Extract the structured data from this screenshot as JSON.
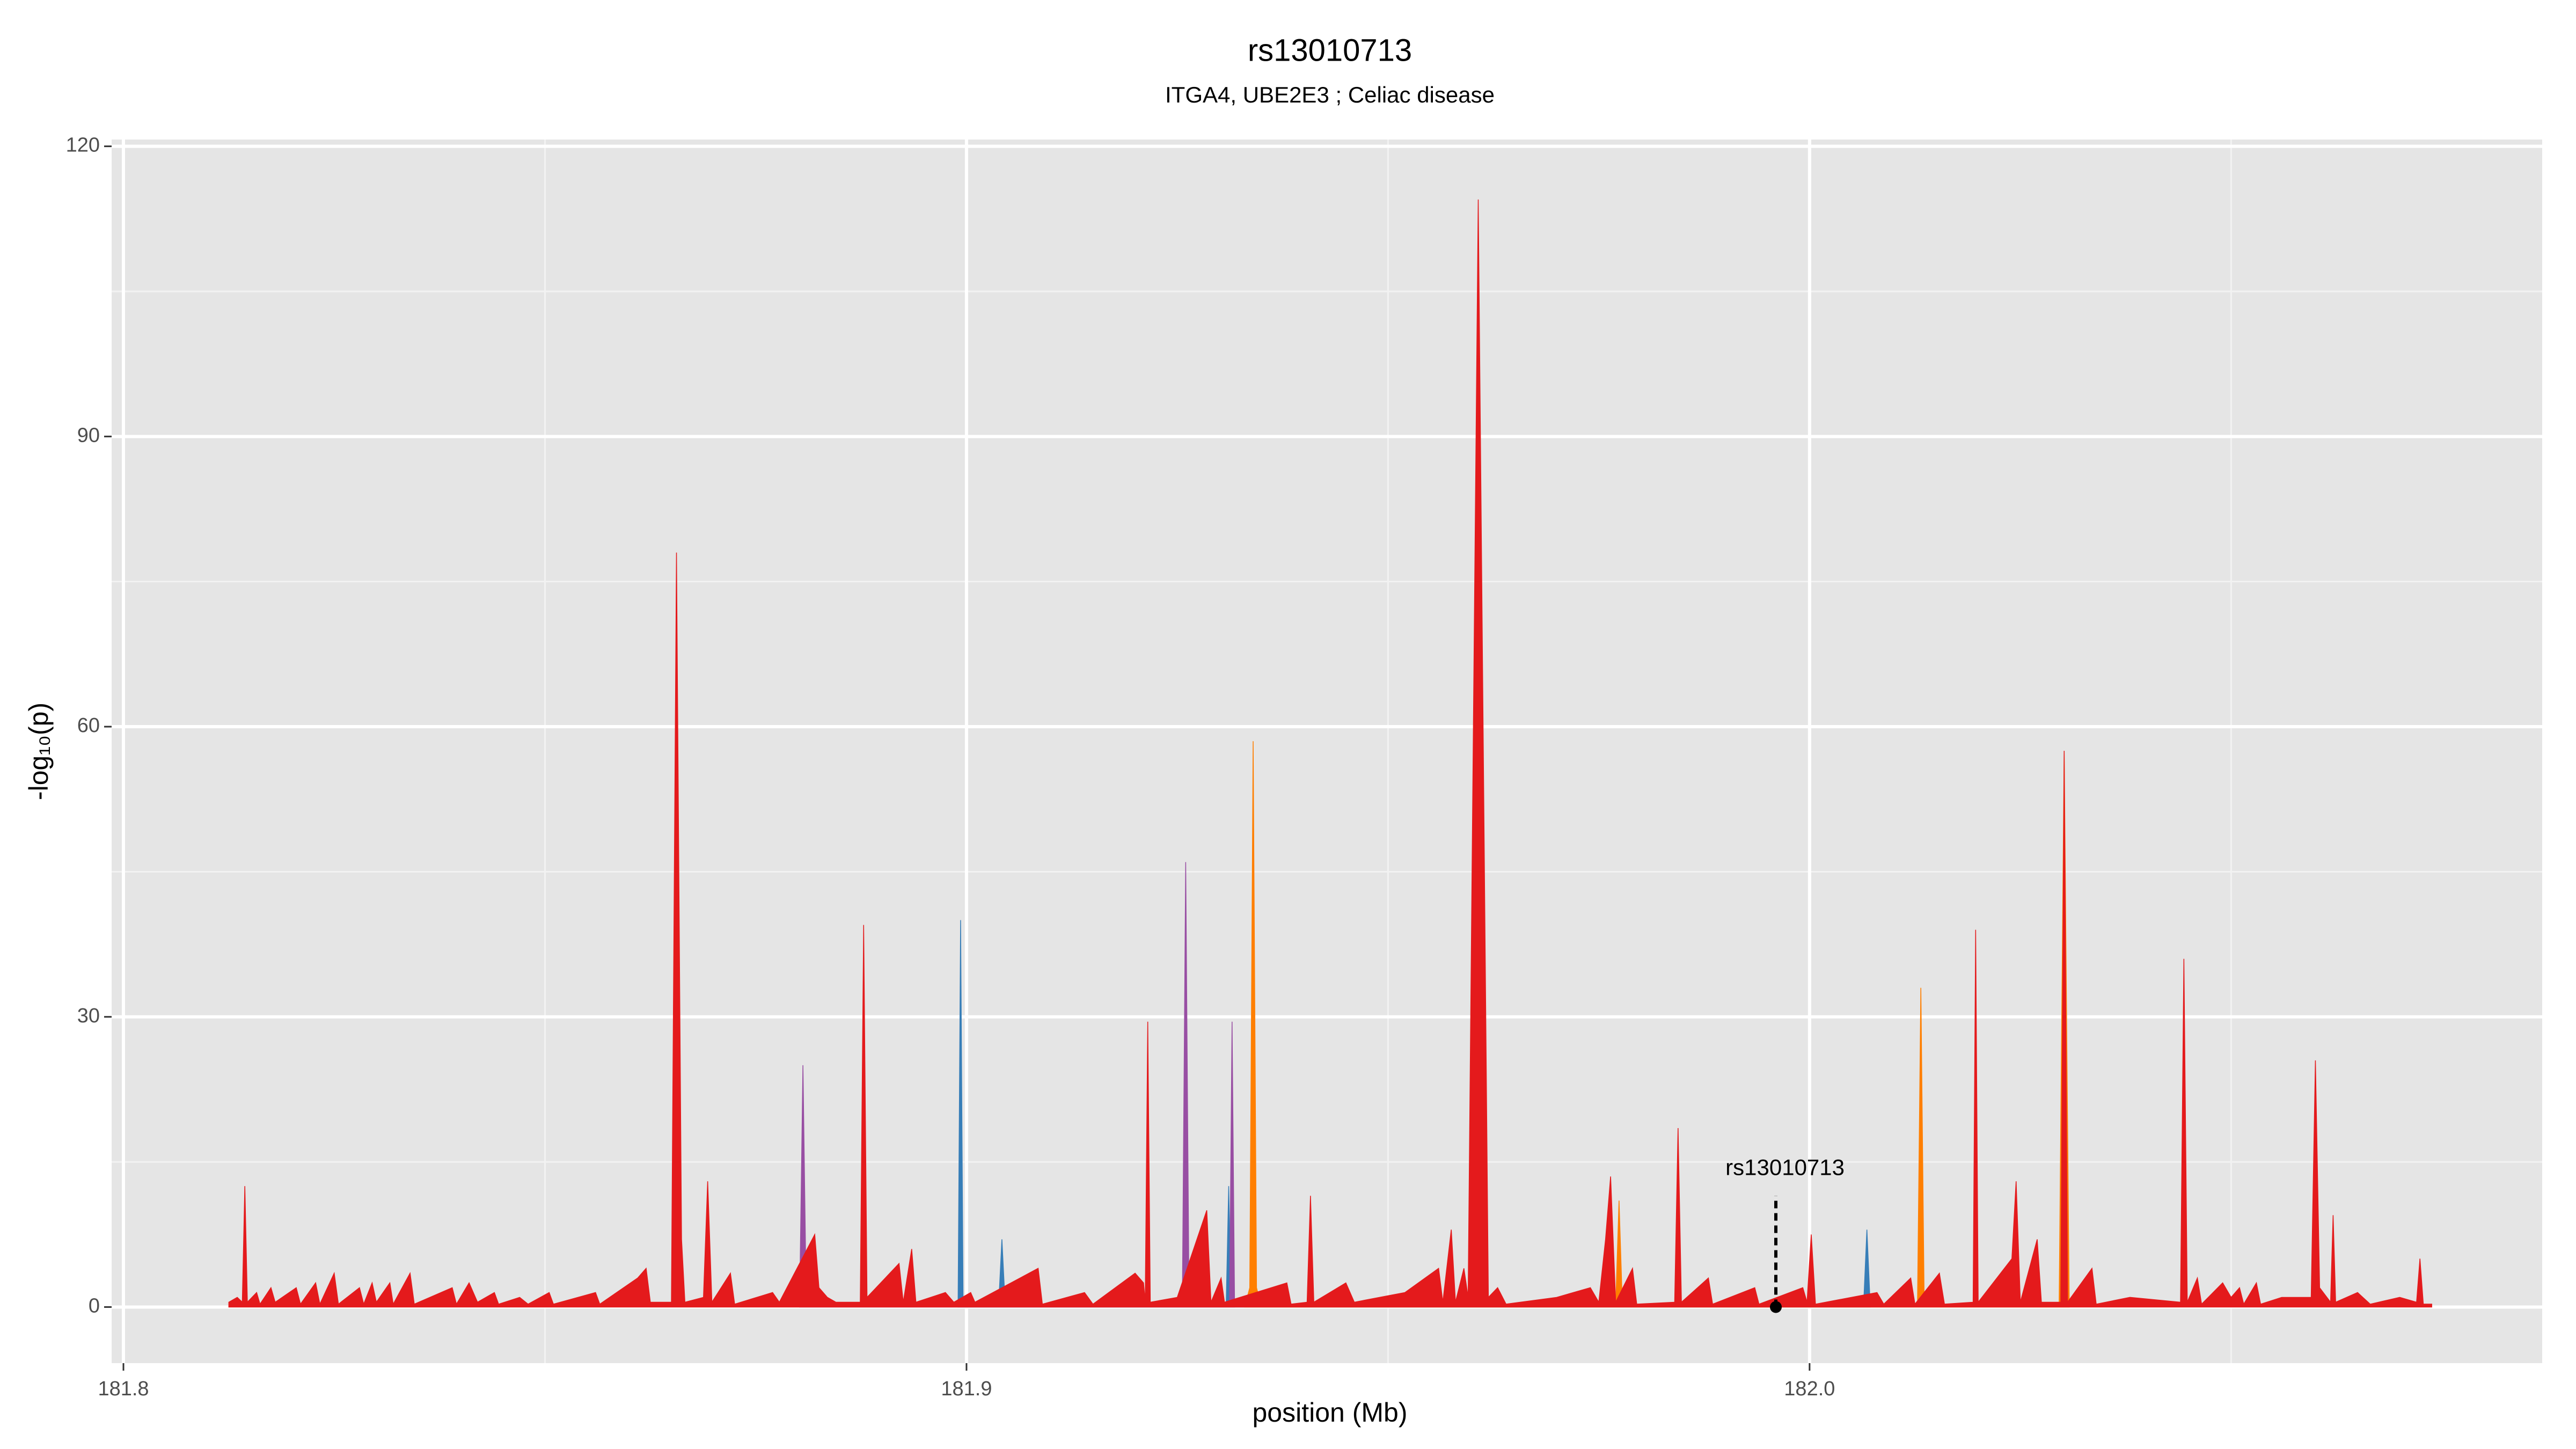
{
  "chart_data": {
    "type": "area",
    "title": "rs13010713",
    "subtitle": "ITGA4, UBE2E3 ; Celiac disease",
    "x_label": "position (Mb)",
    "y_label": "-log₁₀(p)",
    "xlim": [
      181.7986,
      182.0869
    ],
    "ylim": [
      -5.8,
      120.7
    ],
    "xticks": [
      181.8,
      181.9,
      {
        "value": 182,
        "label": "182.0"
      }
    ],
    "yticks": [
      0,
      30,
      60,
      90,
      120
    ],
    "x_minor_grid": [
      181.85,
      181.95,
      182.05
    ],
    "y_minor_grid": [
      15,
      45,
      75,
      105
    ],
    "grid": true,
    "annotation": {
      "text": "rs13010713",
      "x": 181.996,
      "y": 0,
      "line_top": 11.5
    },
    "series": [
      {
        "color": "#377eb8",
        "x": [
          181.899,
          181.8993,
          181.8996,
          181.9038,
          181.9042,
          181.9046,
          181.9308,
          181.9311,
          181.9314,
          182.0064,
          182.0068,
          182.0072
        ],
        "values": [
          0,
          40,
          0,
          0,
          7,
          0,
          0,
          12.5,
          0,
          0,
          8,
          0
        ]
      },
      {
        "color": "#984ea3",
        "x": [
          181.8802,
          181.8806,
          181.881,
          181.9256,
          181.926,
          181.9264,
          181.9312,
          181.9315,
          181.9318
        ],
        "values": [
          0,
          25,
          0,
          0,
          46,
          0,
          0,
          29.5,
          0
        ]
      },
      {
        "color": "#ff7f00",
        "x": [
          181.933,
          181.9336,
          181.934,
          181.9344,
          181.935,
          181.977,
          181.9774,
          181.9778,
          182.0128,
          182.0132,
          182.0136,
          182.0296,
          182.0302,
          182.0308
        ],
        "values": [
          0,
          2,
          58.5,
          2,
          0,
          0,
          11,
          0,
          0,
          33,
          0,
          0,
          57.5,
          0
        ]
      },
      {
        "color": "#e41a1c",
        "x": [
          181.8125,
          181.8135,
          181.8141,
          181.8144,
          181.8147,
          181.8158,
          181.8162,
          181.8175,
          181.818,
          181.8205,
          181.821,
          181.8228,
          181.8233,
          181.825,
          181.8255,
          181.828,
          181.8285,
          181.8295,
          181.83,
          181.8316,
          181.832,
          181.834,
          181.8345,
          181.839,
          181.8395,
          181.841,
          181.842,
          181.844,
          181.8445,
          181.847,
          181.848,
          181.8505,
          181.851,
          181.856,
          181.8565,
          181.861,
          181.862,
          181.8625,
          181.865,
          181.8656,
          181.8662,
          181.8666,
          181.8688,
          181.8693,
          181.8698,
          181.872,
          181.8725,
          181.877,
          181.8778,
          181.882,
          181.8825,
          181.8835,
          181.8845,
          181.8874,
          181.8878,
          181.8882,
          181.892,
          181.8925,
          181.8935,
          181.894,
          181.8975,
          181.8985,
          181.9005,
          181.901,
          181.9085,
          181.909,
          181.914,
          181.915,
          181.92,
          181.921,
          181.9212,
          181.9215,
          181.9218,
          181.925,
          181.9285,
          181.929,
          181.9302,
          181.9306,
          181.938,
          181.9385,
          181.9404,
          181.9408,
          181.9412,
          181.945,
          181.946,
          181.952,
          181.956,
          181.9565,
          181.9575,
          181.958,
          181.959,
          181.9595,
          181.9607,
          181.9619,
          181.963,
          181.964,
          181.97,
          181.974,
          181.975,
          181.9758,
          181.9764,
          181.977,
          181.979,
          181.9795,
          181.984,
          181.9844,
          181.9848,
          181.988,
          181.9885,
          181.9935,
          181.994,
          181.9992,
          181.9997,
          182.0002,
          182.0007,
          182.008,
          182.0088,
          182.012,
          182.0125,
          182.0154,
          182.016,
          182.0194,
          182.0197,
          182.02,
          182.024,
          182.0245,
          182.025,
          182.027,
          182.0275,
          182.0298,
          182.0302,
          182.0306,
          182.0335,
          182.034,
          182.038,
          182.044,
          182.0444,
          182.0448,
          182.046,
          182.0465,
          182.049,
          182.05,
          182.051,
          182.0515,
          182.053,
          182.0535,
          182.056,
          182.0595,
          182.06,
          182.0605,
          182.0618,
          182.0621,
          182.0624,
          182.065,
          182.0665,
          182.07,
          182.072,
          182.0724,
          182.0728,
          182.0738
        ],
        "values": [
          0.5,
          1,
          0.5,
          12.5,
          0.5,
          1.5,
          0.3,
          2,
          0.5,
          2,
          0.3,
          2.5,
          0.3,
          3.5,
          0.3,
          2,
          0.3,
          2.5,
          0.5,
          2.5,
          0.3,
          3.5,
          0.3,
          2,
          0.3,
          2.5,
          0.5,
          1.5,
          0.3,
          1,
          0.3,
          1.5,
          0.3,
          1.5,
          0.3,
          3,
          4,
          0.5,
          0.5,
          78,
          7,
          0.5,
          1,
          13,
          0.5,
          3.5,
          0.3,
          1.5,
          0.5,
          7.5,
          2,
          1,
          0.5,
          0.5,
          39.5,
          1,
          4.5,
          0.5,
          6,
          0.5,
          1.5,
          0.5,
          1.5,
          0.5,
          4,
          0.3,
          1.5,
          0.3,
          3.5,
          2.5,
          0.5,
          29.5,
          0.5,
          1,
          10,
          0.5,
          3,
          0.5,
          2.5,
          0.3,
          0.5,
          11.5,
          0.5,
          2.5,
          0.5,
          1.5,
          4,
          0.5,
          8,
          0.5,
          4,
          1,
          114.5,
          1,
          2,
          0.3,
          1,
          2,
          0.5,
          7,
          13.5,
          0.5,
          4,
          0.3,
          0.5,
          18.5,
          0.5,
          3,
          0.3,
          2,
          0.3,
          2,
          0.5,
          7.5,
          0.3,
          1.5,
          0.3,
          3,
          0.3,
          3.5,
          0.3,
          0.5,
          39,
          0.5,
          5,
          13,
          0.5,
          7,
          0.5,
          0.5,
          57.5,
          0.5,
          4,
          0.3,
          1,
          0.5,
          36,
          0.5,
          3,
          0.3,
          2.5,
          1,
          2,
          0.3,
          2.5,
          0.3,
          1,
          1,
          25.5,
          2,
          0.5,
          9.5,
          0.5,
          1.5,
          0.3,
          1,
          0.5,
          5,
          0.3,
          0.3
        ]
      }
    ]
  }
}
